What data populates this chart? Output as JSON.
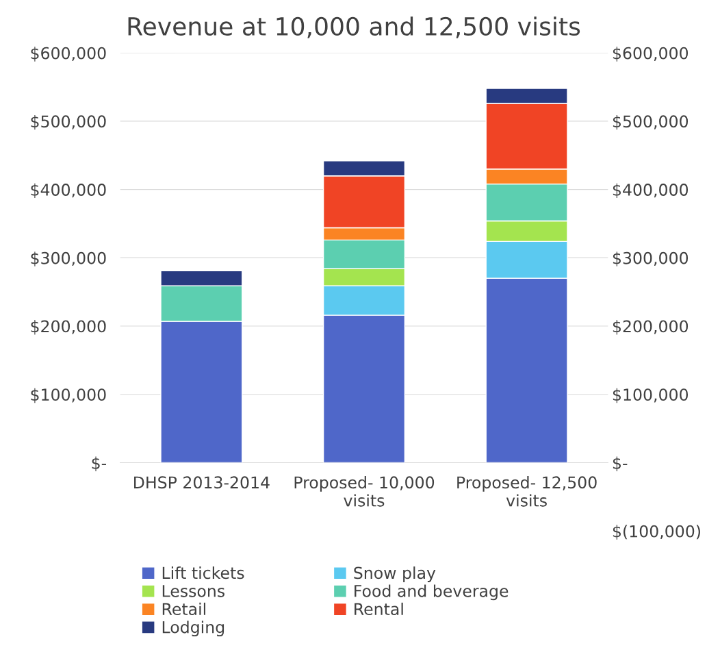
{
  "chart_data": {
    "type": "bar",
    "stacked": true,
    "title": "Revenue at 10,000 and 12,500 visits",
    "categories": [
      "DHSP 2013-2014",
      "Proposed- 10,000 visits",
      "Proposed- 12,500 visits"
    ],
    "series": [
      {
        "name": "Lift tickets",
        "color": "#4f67c9",
        "values": [
          207000,
          216000,
          270000
        ]
      },
      {
        "name": "Snow play",
        "color": "#5bc9f0",
        "values": [
          null,
          43000,
          54000
        ]
      },
      {
        "name": "Lessons",
        "color": "#a4e44f",
        "values": [
          null,
          25000,
          30000
        ]
      },
      {
        "name": "Food and beverage",
        "color": "#5ccfb0",
        "values": [
          52000,
          42000,
          54000
        ]
      },
      {
        "name": "Retail",
        "color": "#fb8423",
        "values": [
          null,
          18000,
          22000
        ]
      },
      {
        "name": "Rental",
        "color": "#f04425",
        "values": [
          null,
          76000,
          96000
        ]
      },
      {
        "name": "Lodging",
        "color": "#283a80",
        "values": [
          22000,
          22000,
          22000
        ]
      }
    ],
    "ylim": [
      0,
      600000
    ],
    "yticks": [
      {
        "value": 0,
        "label": "$-"
      },
      {
        "value": 100000,
        "label": "$100,000"
      },
      {
        "value": 200000,
        "label": "$200,000"
      },
      {
        "value": 300000,
        "label": "$300,000"
      },
      {
        "value": 400000,
        "label": "$400,000"
      },
      {
        "value": 500000,
        "label": "$500,000"
      },
      {
        "value": 600000,
        "label": "$600,000"
      }
    ],
    "y2lim": [
      -100000,
      600000
    ],
    "y2ticks": [
      {
        "value": -100000,
        "label": "$(100,000)"
      },
      {
        "value": 0,
        "label": "$-"
      },
      {
        "value": 100000,
        "label": "$100,000"
      },
      {
        "value": 200000,
        "label": "$200,000"
      },
      {
        "value": 300000,
        "label": "$300,000"
      },
      {
        "value": 400000,
        "label": "$400,000"
      },
      {
        "value": 500000,
        "label": "$500,000"
      },
      {
        "value": 600000,
        "label": "$600,000"
      }
    ],
    "grid": "y",
    "legend": "bottom"
  }
}
